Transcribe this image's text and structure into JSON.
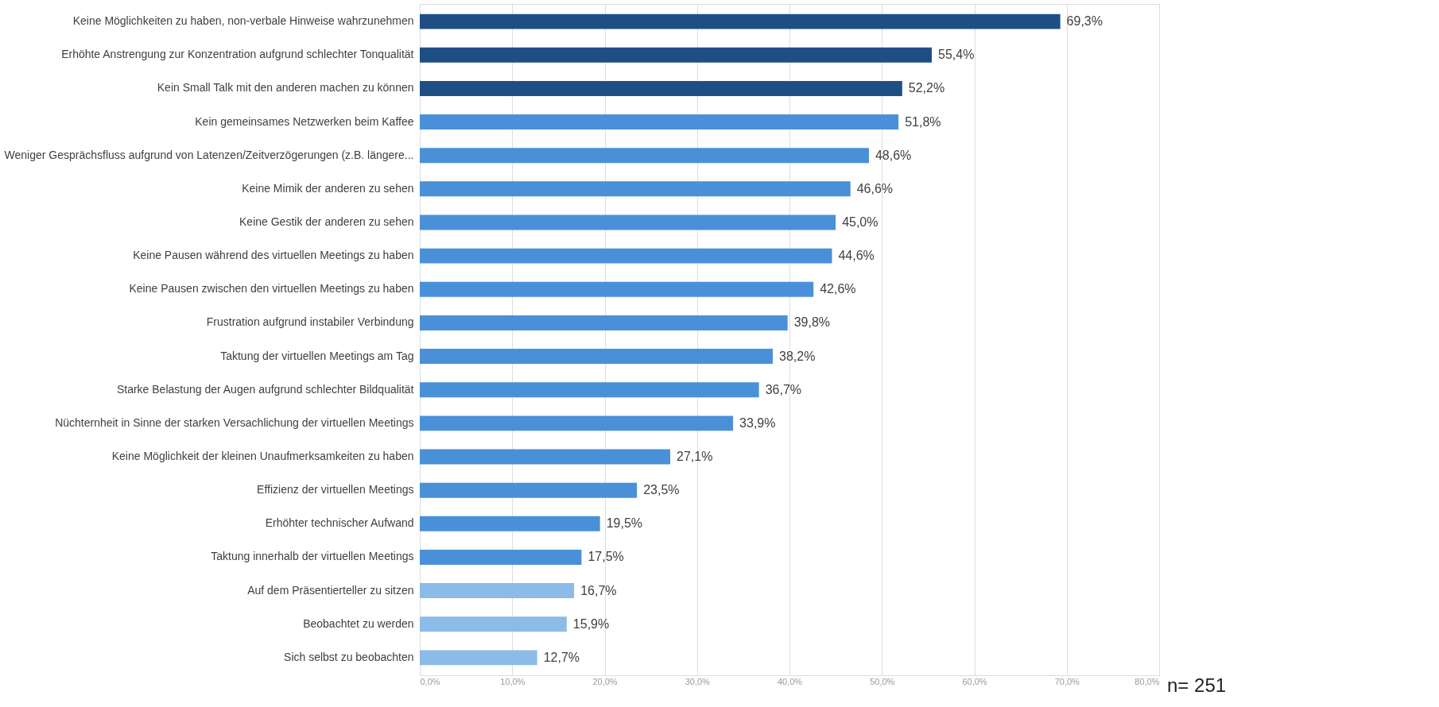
{
  "chart_data": {
    "type": "bar",
    "orientation": "horizontal",
    "categories": [
      "Keine Möglichkeiten zu haben, non-verbale Hinweise wahrzunehmen",
      "Erhöhte Anstrengung zur Konzentration aufgrund schlechter Tonqualität",
      "Kein Small Talk mit den anderen machen zu können",
      "Kein gemeinsames Netzwerken beim Kaffee",
      "Weniger Gesprächsfluss aufgrund von Latenzen/Zeitverzögerungen (z.B. längere...",
      "Keine Mimik der anderen zu sehen",
      "Keine Gestik der anderen zu sehen",
      "Keine Pausen während des virtuellen Meetings zu haben",
      "Keine Pausen zwischen den virtuellen Meetings zu haben",
      "Frustration aufgrund instabiler Verbindung",
      "Taktung der virtuellen Meetings am Tag",
      "Starke Belastung der Augen aufgrund schlechter Bildqualität",
      "Nüchternheit in Sinne der starken Versachlichung der virtuellen Meetings",
      "Keine Möglichkeit der kleinen Unaufmerksamkeiten zu haben",
      "Effizienz der virtuellen Meetings",
      "Erhöhter technischer Aufwand",
      "Taktung innerhalb der virtuellen Meetings",
      "Auf dem Präsentierteller zu sitzen",
      "Beobachtet zu werden",
      "Sich selbst zu beobachten"
    ],
    "values": [
      69.3,
      55.4,
      52.2,
      51.8,
      48.6,
      46.6,
      45.0,
      44.6,
      42.6,
      39.8,
      38.2,
      36.7,
      33.9,
      27.1,
      23.5,
      19.5,
      17.5,
      16.7,
      15.9,
      12.7
    ],
    "value_labels": [
      "69,3%",
      "55,4%",
      "52,2%",
      "51,8%",
      "48,6%",
      "46,6%",
      "45,0%",
      "44,6%",
      "42,6%",
      "39,8%",
      "38,2%",
      "36,7%",
      "33,9%",
      "27,1%",
      "23,5%",
      "19,5%",
      "17,5%",
      "16,7%",
      "15,9%",
      "12,7%"
    ],
    "colors": [
      "#1f4e85",
      "#1f4e85",
      "#1f4e85",
      "#4a90d9",
      "#4a90d9",
      "#4a90d9",
      "#4a90d9",
      "#4a90d9",
      "#4a90d9",
      "#4a90d9",
      "#4a90d9",
      "#4a90d9",
      "#4a90d9",
      "#4a90d9",
      "#4a90d9",
      "#4a90d9",
      "#4a90d9",
      "#8cbbe8",
      "#8cbbe8",
      "#8cbbe8"
    ],
    "xlim": [
      0,
      80
    ],
    "xticks": [
      {
        "value": 0,
        "label": "0,0%"
      },
      {
        "value": 10,
        "label": "10,0%"
      },
      {
        "value": 20,
        "label": "20,0%"
      },
      {
        "value": 30,
        "label": "30,0%"
      },
      {
        "value": 40,
        "label": "40,0%"
      },
      {
        "value": 50,
        "label": "50,0%"
      },
      {
        "value": 60,
        "label": "60,0%"
      },
      {
        "value": 70,
        "label": "70,0%"
      },
      {
        "value": 80,
        "label": "80,0%"
      }
    ],
    "grid": "x",
    "annotations": [
      "n= 251"
    ]
  }
}
